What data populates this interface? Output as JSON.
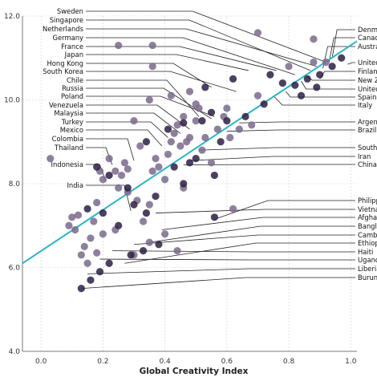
{
  "chart_data": {
    "type": "scatter",
    "title": "",
    "xlabel": "Global Creativity Index",
    "ylabel": "",
    "xlim": [
      -0.06,
      1.02
    ],
    "ylim": [
      4.0,
      12.0
    ],
    "grid": true,
    "x_ticks": [
      "0.0",
      "0.2",
      "0.4",
      "0.6",
      "0.8",
      "1.0"
    ],
    "y_ticks": [
      "4.0",
      "6.0",
      "8.0",
      "10.0",
      "12.0"
    ],
    "fit_line": {
      "x": [
        -0.06,
        1.02
      ],
      "y": [
        6.1,
        11.4
      ],
      "color": "#2ab4c9"
    },
    "point_colors": {
      "light": "#7a6a8c",
      "dark": "#2d1f44",
      "fill_opacity": 0.85
    },
    "labeled_points": [
      {
        "name": "Sweden",
        "x": 0.92,
        "y": 10.9,
        "side": "left"
      },
      {
        "name": "Singapore",
        "x": 0.87,
        "y": 10.7,
        "side": "left"
      },
      {
        "name": "Netherlands",
        "x": 0.89,
        "y": 10.8,
        "side": "left"
      },
      {
        "name": "Germany",
        "x": 0.82,
        "y": 10.6,
        "side": "left"
      },
      {
        "name": "France",
        "x": 0.76,
        "y": 10.7,
        "side": "left"
      },
      {
        "name": "Japan",
        "x": 0.67,
        "y": 10.7,
        "side": "left"
      },
      {
        "name": "Hong Kong",
        "x": 0.55,
        "y": 10.3,
        "side": "left"
      },
      {
        "name": "South Korea",
        "x": 0.63,
        "y": 10.2,
        "side": "left"
      },
      {
        "name": "Chile",
        "x": 0.51,
        "y": 9.6,
        "side": "left"
      },
      {
        "name": "Russia",
        "x": 0.55,
        "y": 9.55,
        "side": "left"
      },
      {
        "name": "Poland",
        "x": 0.56,
        "y": 9.6,
        "side": "left"
      },
      {
        "name": "Venezuela",
        "x": 0.48,
        "y": 9.3,
        "side": "left"
      },
      {
        "name": "Malaysia",
        "x": 0.45,
        "y": 9.2,
        "side": "left"
      },
      {
        "name": "Turkey",
        "x": 0.41,
        "y": 9.1,
        "side": "left"
      },
      {
        "name": "Mexico",
        "x": 0.39,
        "y": 8.9,
        "side": "left"
      },
      {
        "name": "Colombia",
        "x": 0.3,
        "y": 8.55,
        "side": "left"
      },
      {
        "name": "Thailand",
        "x": 0.23,
        "y": 8.45,
        "side": "left"
      },
      {
        "name": "Indonesia",
        "x": 0.21,
        "y": 8.05,
        "side": "left"
      },
      {
        "name": "India",
        "x": 0.29,
        "y": 7.35,
        "side": "left"
      },
      {
        "name": "Denmark",
        "x": 0.94,
        "y": 11.0,
        "side": "right"
      },
      {
        "name": "Canada",
        "x": 0.93,
        "y": 10.9,
        "side": "right"
      },
      {
        "name": "Australia",
        "x": 0.91,
        "y": 10.75,
        "side": "right"
      },
      {
        "name": "United States",
        "x": 0.99,
        "y": 10.85,
        "side": "right"
      },
      {
        "name": "Finland",
        "x": 0.9,
        "y": 10.5,
        "side": "right"
      },
      {
        "name": "New Zealand",
        "x": 0.86,
        "y": 10.55,
        "side": "right"
      },
      {
        "name": "United Kingdom",
        "x": 0.84,
        "y": 10.45,
        "side": "right"
      },
      {
        "name": "Spain",
        "x": 0.79,
        "y": 10.2,
        "side": "right"
      },
      {
        "name": "Italy",
        "x": 0.75,
        "y": 10.1,
        "side": "right"
      },
      {
        "name": "Argentina",
        "x": 0.64,
        "y": 9.45,
        "side": "right"
      },
      {
        "name": "Brazil",
        "x": 0.6,
        "y": 9.25,
        "side": "right"
      },
      {
        "name": "South Africa",
        "x": 0.51,
        "y": 8.8,
        "side": "right"
      },
      {
        "name": "Iran",
        "x": 0.48,
        "y": 8.55,
        "side": "right"
      },
      {
        "name": "China",
        "x": 0.46,
        "y": 8.45,
        "side": "right"
      },
      {
        "name": "Philippines",
        "x": 0.56,
        "y": 7.15,
        "side": "right"
      },
      {
        "name": "Vietnam",
        "x": 0.37,
        "y": 7.3,
        "side": "right"
      },
      {
        "name": "Afghanistan",
        "x": 0.39,
        "y": 6.9,
        "side": "right"
      },
      {
        "name": "Bangladesh",
        "x": 0.35,
        "y": 6.6,
        "side": "right"
      },
      {
        "name": "Cambodia",
        "x": 0.3,
        "y": 6.55,
        "side": "right"
      },
      {
        "name": "Ethiopia",
        "x": 0.27,
        "y": 6.1,
        "side": "right"
      },
      {
        "name": "Haiti",
        "x": 0.23,
        "y": 6.4,
        "side": "right"
      },
      {
        "name": "Uganda",
        "x": 0.19,
        "y": 6.2,
        "side": "right"
      },
      {
        "name": "Liberia",
        "x": 0.15,
        "y": 5.85,
        "side": "right"
      },
      {
        "name": "Burundi",
        "x": 0.13,
        "y": 5.5,
        "side": "right"
      }
    ],
    "points": [
      [
        0.03,
        8.6,
        "l"
      ],
      [
        0.1,
        7.2,
        "l"
      ],
      [
        0.11,
        6.9,
        "l"
      ],
      [
        0.12,
        7.25,
        "l"
      ],
      [
        0.14,
        6.5,
        "l"
      ],
      [
        0.15,
        6.1,
        "l"
      ],
      [
        0.16,
        6.7,
        "l"
      ],
      [
        0.17,
        7.1,
        "l"
      ],
      [
        0.18,
        7.55,
        "l"
      ],
      [
        0.19,
        8.3,
        "l"
      ],
      [
        0.2,
        8.1,
        "l"
      ],
      [
        0.22,
        8.6,
        "l"
      ],
      [
        0.24,
        8.3,
        "l"
      ],
      [
        0.25,
        7.9,
        "l"
      ],
      [
        0.26,
        8.2,
        "l"
      ],
      [
        0.27,
        8.5,
        "l"
      ],
      [
        0.28,
        7.8,
        "l"
      ],
      [
        0.31,
        7.6,
        "l"
      ],
      [
        0.32,
        8.9,
        "l"
      ],
      [
        0.33,
        7.1,
        "l"
      ],
      [
        0.35,
        7.5,
        "l"
      ],
      [
        0.36,
        8.3,
        "l"
      ],
      [
        0.37,
        8.6,
        "l"
      ],
      [
        0.38,
        8.4,
        "l"
      ],
      [
        0.4,
        8.1,
        "l"
      ],
      [
        0.41,
        8.7,
        "l"
      ],
      [
        0.42,
        9.0,
        "l"
      ],
      [
        0.43,
        9.2,
        "l"
      ],
      [
        0.44,
        9.4,
        "l"
      ],
      [
        0.45,
        8.9,
        "l"
      ],
      [
        0.46,
        9.6,
        "l"
      ],
      [
        0.47,
        9.0,
        "l"
      ],
      [
        0.48,
        9.1,
        "l"
      ],
      [
        0.5,
        9.5,
        "l"
      ],
      [
        0.51,
        9.8,
        "l"
      ],
      [
        0.52,
        8.8,
        "l"
      ],
      [
        0.53,
        9.1,
        "l"
      ],
      [
        0.55,
        8.5,
        "l"
      ],
      [
        0.57,
        9.3,
        "l"
      ],
      [
        0.59,
        9.6,
        "l"
      ],
      [
        0.61,
        9.1,
        "l"
      ],
      [
        0.64,
        9.3,
        "l"
      ],
      [
        0.68,
        9.4,
        "l"
      ],
      [
        0.7,
        10.1,
        "l"
      ],
      [
        0.46,
        7.9,
        "l"
      ],
      [
        0.35,
        6.6,
        "l"
      ],
      [
        0.3,
        6.3,
        "l"
      ],
      [
        0.4,
        6.8,
        "l"
      ],
      [
        0.62,
        7.4,
        "l"
      ],
      [
        0.2,
        6.8,
        "l"
      ],
      [
        0.13,
        6.3,
        "l"
      ],
      [
        0.09,
        7.0,
        "l"
      ],
      [
        0.36,
        11.3,
        "l"
      ],
      [
        0.25,
        11.3,
        "l"
      ],
      [
        0.36,
        10.8,
        "l"
      ],
      [
        0.7,
        11.6,
        "l"
      ],
      [
        0.8,
        10.8,
        "l"
      ],
      [
        0.88,
        11.45,
        "l"
      ],
      [
        0.92,
        10.9,
        "l"
      ],
      [
        0.88,
        10.9,
        "l"
      ],
      [
        0.48,
        10.2,
        "l"
      ],
      [
        0.42,
        10.1,
        "l"
      ],
      [
        0.35,
        10.0,
        "l"
      ],
      [
        0.3,
        9.5,
        "l"
      ],
      [
        0.6,
        9.8,
        "l"
      ],
      [
        0.5,
        9.9,
        "l"
      ],
      [
        0.28,
        8.35,
        "l"
      ],
      [
        0.18,
        6.35,
        "l"
      ],
      [
        0.44,
        6.4,
        "l"
      ],
      [
        0.24,
        6.9,
        "l"
      ],
      [
        0.56,
        8.2,
        "d"
      ],
      [
        0.48,
        8.5,
        "d"
      ],
      [
        0.43,
        8.4,
        "d"
      ],
      [
        0.46,
        8.0,
        "d"
      ],
      [
        0.37,
        7.7,
        "d"
      ],
      [
        0.34,
        7.3,
        "d"
      ],
      [
        0.38,
        6.55,
        "d"
      ],
      [
        0.29,
        6.3,
        "d"
      ],
      [
        0.22,
        6.1,
        "d"
      ],
      [
        0.19,
        5.9,
        "d"
      ],
      [
        0.16,
        5.7,
        "d"
      ],
      [
        0.13,
        5.5,
        "d"
      ],
      [
        0.2,
        7.3,
        "d"
      ],
      [
        0.15,
        7.4,
        "d"
      ],
      [
        0.3,
        7.5,
        "d"
      ],
      [
        0.22,
        8.2,
        "d"
      ],
      [
        0.34,
        9.0,
        "d"
      ],
      [
        0.41,
        9.3,
        "d"
      ],
      [
        0.46,
        9.45,
        "d"
      ],
      [
        0.52,
        9.5,
        "d"
      ],
      [
        0.55,
        9.7,
        "d"
      ],
      [
        0.6,
        9.5,
        "d"
      ],
      [
        0.66,
        9.6,
        "d"
      ],
      [
        0.72,
        9.9,
        "d"
      ],
      [
        0.78,
        10.4,
        "d"
      ],
      [
        0.82,
        10.35,
        "d"
      ],
      [
        0.86,
        10.5,
        "d"
      ],
      [
        0.9,
        10.6,
        "d"
      ],
      [
        0.94,
        10.8,
        "d"
      ],
      [
        0.97,
        11.0,
        "d"
      ],
      [
        0.89,
        10.3,
        "d"
      ],
      [
        0.84,
        10.1,
        "d"
      ],
      [
        0.74,
        10.6,
        "d"
      ],
      [
        0.62,
        10.5,
        "d"
      ],
      [
        0.53,
        10.3,
        "d"
      ],
      [
        0.56,
        7.2,
        "d"
      ],
      [
        0.33,
        6.4,
        "d"
      ],
      [
        0.25,
        7.0,
        "d"
      ],
      [
        0.18,
        8.4,
        "d"
      ],
      [
        0.28,
        7.9,
        "d"
      ],
      [
        0.5,
        8.6,
        "d"
      ],
      [
        0.58,
        9.0,
        "d"
      ]
    ]
  }
}
